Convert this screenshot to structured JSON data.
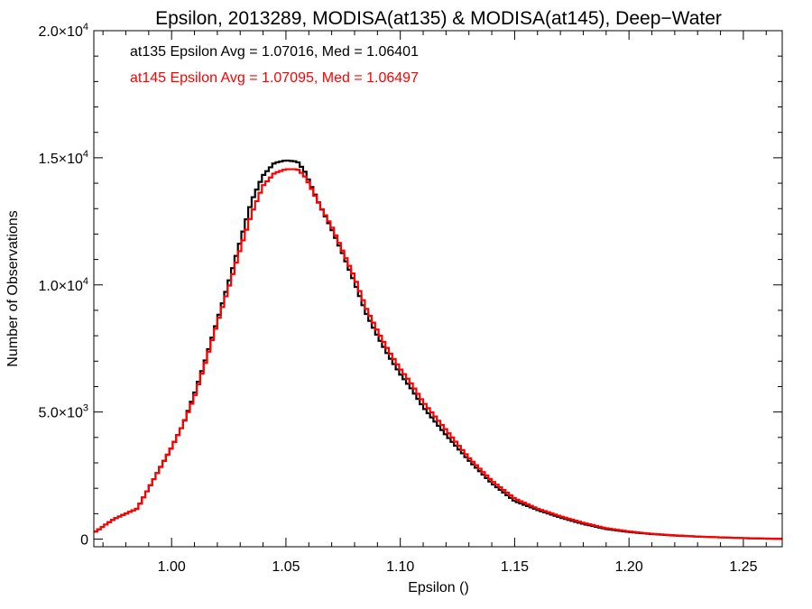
{
  "chart_data": {
    "type": "line",
    "title": "Epsilon, 2013289, MODISA(at135) & MODISA(at145), Deep−Water",
    "xlabel": "Epsilon ()",
    "ylabel": "Number of Observations",
    "xlim": [
      0.966,
      1.267
    ],
    "ylim": [
      -300,
      20000
    ],
    "x_ticks": [
      {
        "value": 1.0,
        "label": "1.00"
      },
      {
        "value": 1.05,
        "label": "1.05"
      },
      {
        "value": 1.1,
        "label": "1.10"
      },
      {
        "value": 1.15,
        "label": "1.15"
      },
      {
        "value": 1.2,
        "label": "1.20"
      },
      {
        "value": 1.25,
        "label": "1.25"
      }
    ],
    "y_ticks": [
      {
        "value": 0,
        "mantissa": "0",
        "exponent": ""
      },
      {
        "value": 5000,
        "mantissa": "5.0×10",
        "exponent": "3"
      },
      {
        "value": 10000,
        "mantissa": "1.0×10",
        "exponent": "4"
      },
      {
        "value": 15000,
        "mantissa": "1.5×10",
        "exponent": "4"
      },
      {
        "value": 20000,
        "mantissa": "2.0×10",
        "exponent": "4"
      }
    ],
    "annotations": [
      {
        "text": "at135 Epsilon Avg = 1.07016, Med = 1.06401",
        "color": "#000000"
      },
      {
        "text": "at145 Epsilon Avg = 1.07095, Med = 1.06497",
        "color": "#ff0000"
      }
    ],
    "series": [
      {
        "color": "#000000",
        "x": [
          0.966,
          0.975,
          0.985,
          0.99,
          0.995,
          1.0,
          1.005,
          1.01,
          1.015,
          1.02,
          1.025,
          1.03,
          1.035,
          1.04,
          1.045,
          1.05,
          1.055,
          1.058,
          1.06,
          1.065,
          1.07,
          1.075,
          1.08,
          1.085,
          1.09,
          1.095,
          1.1,
          1.105,
          1.11,
          1.12,
          1.13,
          1.14,
          1.15,
          1.16,
          1.17,
          1.18,
          1.19,
          1.2,
          1.21,
          1.22,
          1.23,
          1.24,
          1.25,
          1.26,
          1.267
        ],
        "y": [
          250,
          800,
          1200,
          2000,
          2800,
          3600,
          4500,
          5700,
          7100,
          8600,
          10100,
          11700,
          13300,
          14300,
          14800,
          14900,
          14850,
          14500,
          14100,
          13100,
          12200,
          11200,
          10100,
          8900,
          8000,
          7200,
          6500,
          5900,
          5200,
          4100,
          3100,
          2200,
          1500,
          1150,
          850,
          600,
          400,
          280,
          200,
          140,
          100,
          70,
          40,
          20,
          10
        ]
      },
      {
        "color": "#ff0000",
        "x": [
          0.966,
          0.975,
          0.985,
          0.99,
          0.995,
          1.0,
          1.005,
          1.01,
          1.015,
          1.02,
          1.025,
          1.03,
          1.035,
          1.04,
          1.045,
          1.05,
          1.055,
          1.058,
          1.06,
          1.065,
          1.07,
          1.075,
          1.08,
          1.085,
          1.09,
          1.095,
          1.1,
          1.105,
          1.11,
          1.12,
          1.13,
          1.14,
          1.15,
          1.16,
          1.17,
          1.18,
          1.19,
          1.2,
          1.21,
          1.22,
          1.23,
          1.24,
          1.25,
          1.26,
          1.267
        ],
        "y": [
          250,
          800,
          1200,
          2000,
          2800,
          3600,
          4500,
          5600,
          7000,
          8500,
          9900,
          11400,
          12800,
          13900,
          14400,
          14550,
          14550,
          14300,
          14000,
          13100,
          12300,
          11300,
          10300,
          9100,
          8200,
          7400,
          6700,
          6100,
          5400,
          4300,
          3200,
          2300,
          1600,
          1200,
          900,
          640,
          430,
          300,
          210,
          150,
          100,
          70,
          40,
          20,
          10
        ]
      }
    ]
  }
}
